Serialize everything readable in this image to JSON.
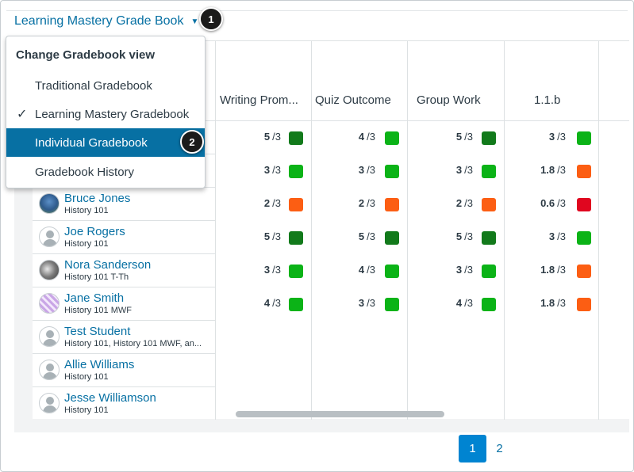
{
  "view_trigger": {
    "label": "Learning Mastery Grade Book",
    "caret": "▼"
  },
  "callouts": {
    "one": "1",
    "two": "2"
  },
  "menu": {
    "title": "Change Gradebook view",
    "items": [
      {
        "label": "Traditional Gradebook",
        "checked": false,
        "active": false
      },
      {
        "label": "Learning Mastery Gradebook",
        "checked": true,
        "active": false
      },
      {
        "label": "Individual Gradebook",
        "checked": false,
        "active": true
      },
      {
        "label": "Gradebook History",
        "checked": false,
        "active": false
      }
    ],
    "check_glyph": "✓"
  },
  "columns": [
    "Writing Prom...",
    "Quiz Outcome",
    "Group Work",
    "1.1.b"
  ],
  "colors": {
    "dark_green": "#127a1b",
    "green": "#0bb317",
    "orange": "#fc5e13",
    "red": "#e0061f"
  },
  "rows": [
    {
      "name": "",
      "section": "",
      "avatar": "none",
      "scores": [
        {
          "value": "5",
          "denom": "/3",
          "level": "dark_green"
        },
        {
          "value": "4",
          "denom": "/3",
          "level": "green"
        },
        {
          "value": "5",
          "denom": "/3",
          "level": "dark_green"
        },
        {
          "value": "3",
          "denom": "/3",
          "level": "green"
        }
      ]
    },
    {
      "name": "",
      "section": "",
      "avatar": "none",
      "scores": [
        {
          "value": "3",
          "denom": "/3",
          "level": "green"
        },
        {
          "value": "3",
          "denom": "/3",
          "level": "green"
        },
        {
          "value": "3",
          "denom": "/3",
          "level": "green"
        },
        {
          "value": "1.8",
          "denom": "/3",
          "level": "orange"
        }
      ]
    },
    {
      "name": "Bruce Jones",
      "section": "History 101",
      "avatar": "photo1",
      "scores": [
        {
          "value": "2",
          "denom": "/3",
          "level": "orange"
        },
        {
          "value": "2",
          "denom": "/3",
          "level": "orange"
        },
        {
          "value": "2",
          "denom": "/3",
          "level": "orange"
        },
        {
          "value": "0.6",
          "denom": "/3",
          "level": "red"
        }
      ]
    },
    {
      "name": "Joe Rogers",
      "section": "History 101",
      "avatar": "default",
      "scores": [
        {
          "value": "5",
          "denom": "/3",
          "level": "dark_green"
        },
        {
          "value": "5",
          "denom": "/3",
          "level": "dark_green"
        },
        {
          "value": "5",
          "denom": "/3",
          "level": "dark_green"
        },
        {
          "value": "3",
          "denom": "/3",
          "level": "green"
        }
      ]
    },
    {
      "name": "Nora Sanderson",
      "section": "History 101 T-Th",
      "avatar": "photo2",
      "scores": [
        {
          "value": "3",
          "denom": "/3",
          "level": "green"
        },
        {
          "value": "4",
          "denom": "/3",
          "level": "green"
        },
        {
          "value": "3",
          "denom": "/3",
          "level": "green"
        },
        {
          "value": "1.8",
          "denom": "/3",
          "level": "orange"
        }
      ]
    },
    {
      "name": "Jane Smith",
      "section": "History 101 MWF",
      "avatar": "photo3",
      "scores": [
        {
          "value": "4",
          "denom": "/3",
          "level": "green"
        },
        {
          "value": "3",
          "denom": "/3",
          "level": "green"
        },
        {
          "value": "4",
          "denom": "/3",
          "level": "green"
        },
        {
          "value": "1.8",
          "denom": "/3",
          "level": "orange"
        }
      ]
    },
    {
      "name": "Test Student",
      "section": "History 101, History 101 MWF, an...",
      "avatar": "default",
      "scores": []
    },
    {
      "name": "Allie Williams",
      "section": "History 101",
      "avatar": "default",
      "scores": []
    },
    {
      "name": "Jesse Williamson",
      "section": "History 101",
      "avatar": "default",
      "scores": []
    }
  ],
  "pagination": {
    "current": "1",
    "next": "2"
  }
}
